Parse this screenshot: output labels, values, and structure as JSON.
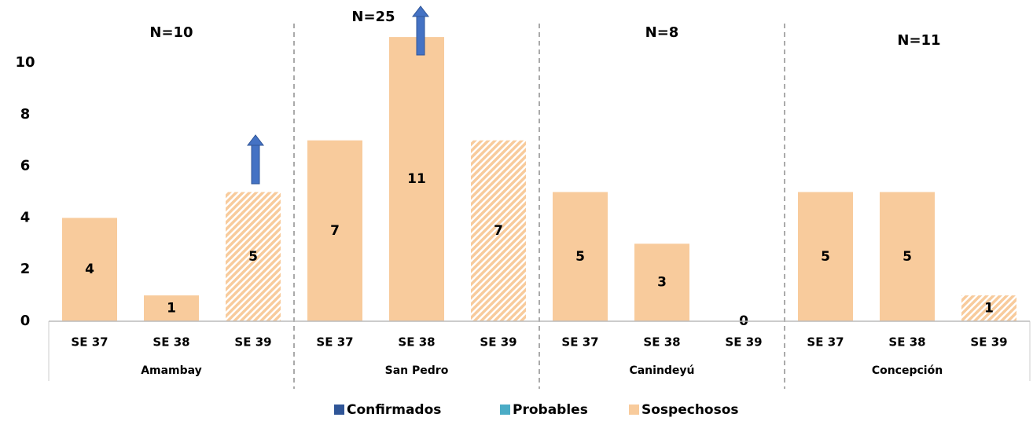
{
  "chart_data": {
    "type": "bar",
    "groups": [
      {
        "name": "Amambay",
        "n_label": "N=10",
        "categories": [
          "SE 37",
          "SE 38",
          "SE 39"
        ]
      },
      {
        "name": "San Pedro",
        "n_label": "N=25",
        "categories": [
          "SE 37",
          "SE 38",
          "SE 39"
        ]
      },
      {
        "name": "Canindeyú",
        "n_label": "N=8",
        "categories": [
          "SE 37",
          "SE 38",
          "SE 39"
        ]
      },
      {
        "name": "Concepción",
        "n_label": "N=11",
        "categories": [
          "SE 37",
          "SE 38",
          "SE 39"
        ]
      }
    ],
    "series": [
      {
        "name": "Confirmados",
        "color": "#2f5597",
        "values": [
          0,
          0,
          0,
          0,
          0,
          0,
          0,
          0,
          0,
          0,
          0,
          0
        ]
      },
      {
        "name": "Probables",
        "color": "#4bacc6",
        "values": [
          0,
          0,
          0,
          0,
          0,
          0,
          0,
          0,
          0,
          0,
          0,
          0
        ]
      },
      {
        "name": "Sospechosos",
        "color": "#f8cb9c",
        "values": [
          4,
          1,
          5,
          7,
          11,
          7,
          5,
          3,
          0,
          5,
          5,
          1
        ],
        "labels": true
      }
    ],
    "hatched": [
      false,
      false,
      true,
      false,
      false,
      true,
      false,
      false,
      false,
      false,
      false,
      true
    ],
    "ylim": [
      0,
      10
    ],
    "yticks": [
      0,
      2,
      4,
      6,
      8,
      10
    ],
    "grid": false,
    "stacked": true
  }
}
